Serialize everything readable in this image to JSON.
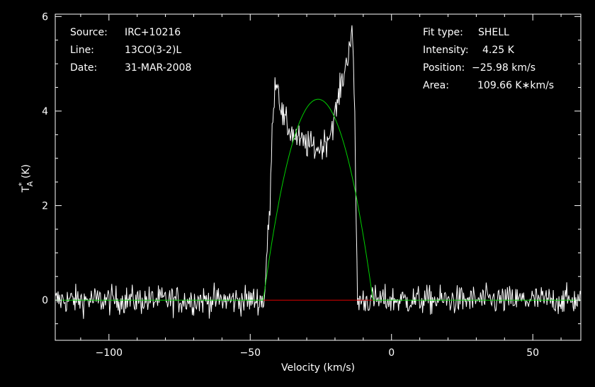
{
  "header_left": [
    {
      "key": "Source:",
      "value": "IRC+10216"
    },
    {
      "key": "Line:",
      "value": "13CO(3-2)L"
    },
    {
      "key": "Date:",
      "value": "31-MAR-2008"
    }
  ],
  "header_right": [
    {
      "key": "Fit type:",
      "value": "SHELL"
    },
    {
      "key": "Intensity:",
      "value": "4.25 K"
    },
    {
      "key": "Position:",
      "value": "−25.98 km/s"
    },
    {
      "key": "Area:",
      "value": "109.66 K∗km/s"
    }
  ],
  "chart_data": {
    "type": "line",
    "xlabel": "Velocity (km/s)",
    "ylabel": "T",
    "ylabel_super": "*",
    "ylabel_sub": "A",
    "ylabel_unit": "(K)",
    "xlim": [
      -119,
      67
    ],
    "ylim": [
      -0.85,
      6.05
    ],
    "x_ticks": [
      -100,
      -50,
      0,
      50
    ],
    "x_tick_labels": [
      "−100",
      "−50",
      "0",
      "50"
    ],
    "y_ticks": [
      0,
      2,
      4,
      6
    ],
    "y_tick_labels": [
      "0",
      "2",
      "4",
      "6"
    ],
    "series": [
      {
        "role": "observed spectrum",
        "color": "#ffffff",
        "noise_sigma": 0.15,
        "x": [
          -119,
          -45,
          -44.5,
          -43,
          -42,
          -41,
          -40,
          -39,
          -38,
          -36,
          -34,
          -32,
          -30,
          -28,
          -26,
          -24,
          -22,
          -20,
          -18,
          -16,
          -15,
          -14,
          -13,
          -12.5,
          -12,
          67
        ],
        "y": [
          0,
          0,
          0.6,
          2.0,
          4.0,
          4.7,
          4.5,
          4.0,
          3.8,
          3.6,
          3.45,
          3.35,
          3.3,
          3.25,
          3.2,
          3.3,
          3.5,
          3.9,
          4.5,
          5.0,
          5.4,
          5.7,
          4.0,
          1.5,
          0,
          0
        ]
      },
      {
        "role": "shell fit",
        "color": "#00d000",
        "peak": 4.25,
        "center": -25.98,
        "half_width": 19.4
      },
      {
        "role": "fit baseline window",
        "color": "#dd0000",
        "x": [
          -45.4,
          -6.6
        ],
        "y": [
          0,
          0
        ]
      }
    ]
  }
}
